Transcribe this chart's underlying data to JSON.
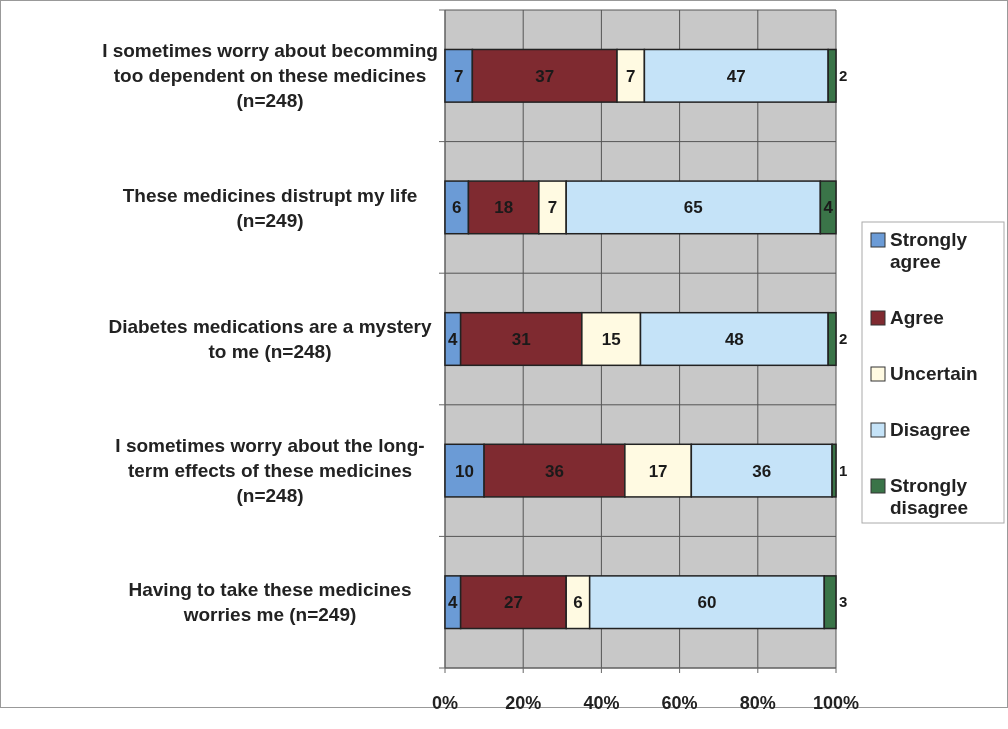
{
  "chart_data": {
    "type": "bar",
    "orientation": "horizontal",
    "stacked": true,
    "categories": [
      "I sometimes worry about becomming too dependent on these medicines (n=248)",
      "These medicines distrupt my life (n=249)",
      "Diabetes medications are a mystery to me (n=248)",
      "I sometimes worry about the long-term effects of these medicines (n=248)",
      "Having to take these medicines worries me (n=249)"
    ],
    "series": [
      {
        "name": "Strongly agree",
        "color": "#6b9bd6",
        "values": [
          7,
          6,
          4,
          10,
          4
        ]
      },
      {
        "name": "Agree",
        "color": "#7f2a30",
        "values": [
          37,
          18,
          31,
          36,
          27
        ]
      },
      {
        "name": "Uncertain",
        "color": "#fffae2",
        "values": [
          7,
          7,
          15,
          17,
          6
        ]
      },
      {
        "name": "Disagree",
        "color": "#c5e3f8",
        "values": [
          47,
          65,
          48,
          36,
          60
        ]
      },
      {
        "name": "Strongly disagree",
        "color": "#3a7448",
        "values": [
          2,
          4,
          2,
          1,
          3
        ]
      }
    ],
    "xlim": [
      0,
      100
    ],
    "xticks": [
      {
        "value": 0,
        "label": "0%"
      },
      {
        "value": 20,
        "label": "20%"
      },
      {
        "value": 40,
        "label": "40%"
      },
      {
        "value": 60,
        "label": "60%"
      },
      {
        "value": 80,
        "label": "80%"
      },
      {
        "value": 100,
        "label": "100%"
      }
    ],
    "grid": true,
    "legend": "right",
    "data_labels": true
  }
}
